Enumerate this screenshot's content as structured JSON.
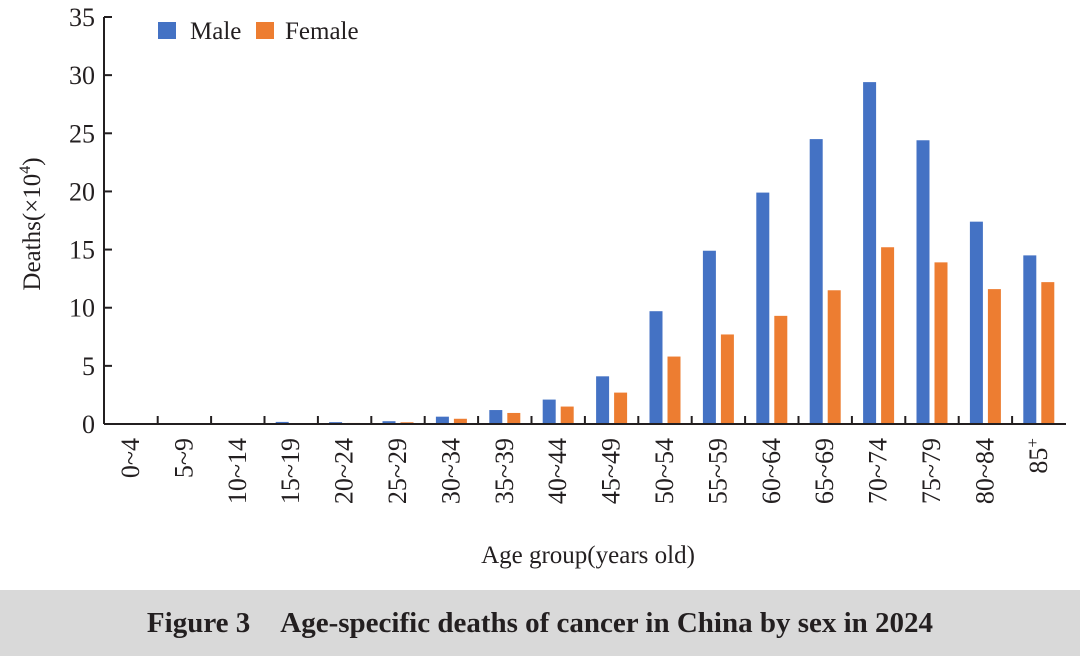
{
  "caption": {
    "label": "Figure 3",
    "text": "Age-specific deaths of cancer in China by sex in 2024"
  },
  "colors": {
    "male": "#4472c4",
    "female": "#ed7d31",
    "axis": "#231f20",
    "caption_bg": "#d9d9d9"
  },
  "chart_data": {
    "type": "bar",
    "title": "Age-specific deaths of cancer in China by sex in 2024",
    "xlabel": "Age group(years old)",
    "ylabel": "Deaths(×10⁴)",
    "ylabel_parts": {
      "pre": "Deaths(×10",
      "sup": "4",
      "post": ")"
    },
    "ylim": [
      0,
      35
    ],
    "yticks": [
      0,
      5,
      10,
      15,
      20,
      25,
      30,
      35
    ],
    "grid": false,
    "legend_position": "top-left",
    "categories": [
      "0~4",
      "5~9",
      "10~14",
      "15~19",
      "20~24",
      "25~29",
      "30~34",
      "35~39",
      "40~44",
      "45~49",
      "50~54",
      "55~59",
      "60~64",
      "65~69",
      "70~74",
      "75~79",
      "80~84",
      "85+"
    ],
    "category_labels": [
      {
        "text": "0~4"
      },
      {
        "text": "5~9"
      },
      {
        "text": "10~14"
      },
      {
        "text": "15~19"
      },
      {
        "text": "20~24"
      },
      {
        "text": "25~29"
      },
      {
        "text": "30~34"
      },
      {
        "text": "35~39"
      },
      {
        "text": "40~44"
      },
      {
        "text": "45~49"
      },
      {
        "text": "50~54"
      },
      {
        "text": "55~59"
      },
      {
        "text": "60~64"
      },
      {
        "text": "65~69"
      },
      {
        "text": "70~74"
      },
      {
        "text": "75~79"
      },
      {
        "text": "80~84"
      },
      {
        "text": "85",
        "sup": "+"
      }
    ],
    "series": [
      {
        "name": "Male",
        "color": "#4472c4",
        "values": [
          0.05,
          0.05,
          0.07,
          0.18,
          0.16,
          0.24,
          0.63,
          1.2,
          2.1,
          4.1,
          9.7,
          14.9,
          19.9,
          24.5,
          29.4,
          24.4,
          17.4,
          14.5
        ]
      },
      {
        "name": "Female",
        "color": "#ed7d31",
        "values": [
          0.04,
          0.04,
          0.05,
          0.08,
          0.09,
          0.15,
          0.45,
          0.95,
          1.5,
          2.7,
          5.8,
          7.7,
          9.3,
          11.5,
          15.2,
          13.9,
          11.6,
          12.2
        ]
      }
    ]
  }
}
